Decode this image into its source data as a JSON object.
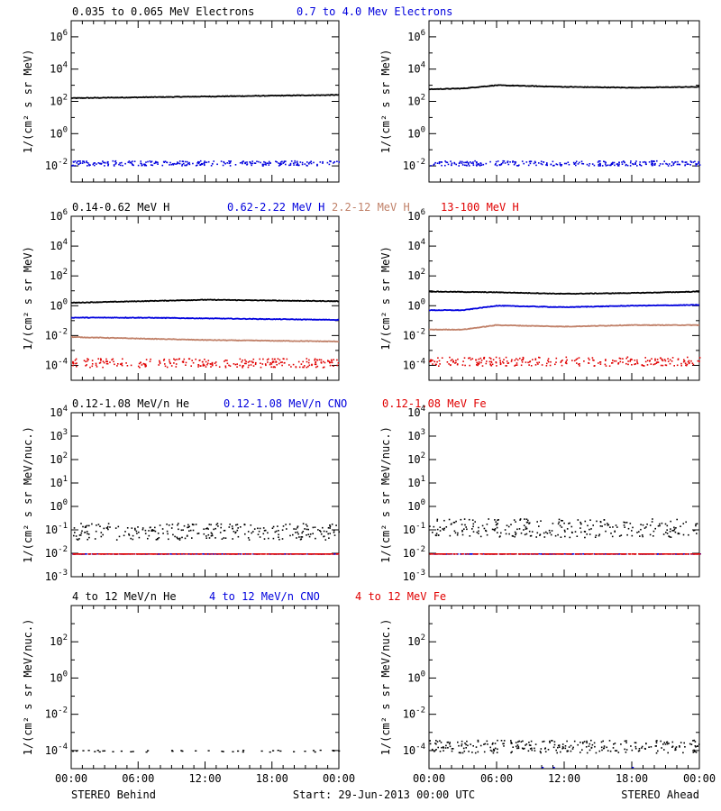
{
  "colors": {
    "black": "#000000",
    "blue": "#0000dd",
    "tan": "#c08068",
    "red": "#e00000"
  },
  "footer": {
    "left": "STEREO Behind",
    "center": "Start: 29-Jun-2013 00:00 UTC",
    "right": "STEREO Ahead"
  },
  "xticks": [
    "00:00",
    "06:00",
    "12:00",
    "18:00",
    "00:00"
  ],
  "chart_data": [
    {
      "type": "scatter",
      "row": "electrons",
      "ylabel": "1/(cm² s sr MeV)",
      "ylog": true,
      "ylim_exp": [
        -3,
        7
      ],
      "ytick_exps": [
        -2,
        0,
        2,
        4,
        6
      ],
      "legend": [
        {
          "name": "0.035 to 0.065 MeV Electrons",
          "color": "black"
        },
        {
          "name": "0.7 to 4.0 Mev Electrons",
          "color": "blue"
        }
      ],
      "behind": [
        {
          "series": "0.035 to 0.065 MeV Electrons",
          "style": "line",
          "color": "black",
          "x_hours": [
            0,
            6,
            12,
            18,
            24
          ],
          "log10_y": [
            2.2,
            2.25,
            2.3,
            2.35,
            2.4
          ]
        },
        {
          "series": "0.7 to 4.0 Mev Electrons",
          "style": "dots",
          "color": "blue",
          "x_hours": [
            0,
            24
          ],
          "log10_y": [
            -1.8,
            -1.8
          ],
          "scatter": 0.15
        }
      ],
      "ahead": [
        {
          "series": "0.035 to 0.065 MeV Electrons",
          "style": "line",
          "color": "black",
          "x_hours": [
            0,
            3,
            6,
            12,
            18,
            24
          ],
          "log10_y": [
            2.75,
            2.8,
            3.0,
            2.9,
            2.85,
            2.9
          ]
        },
        {
          "series": "0.7 to 4.0 Mev Electrons",
          "style": "dots",
          "color": "blue",
          "x_hours": [
            0,
            24
          ],
          "log10_y": [
            -1.8,
            -1.8
          ],
          "scatter": 0.15
        }
      ]
    },
    {
      "type": "scatter",
      "row": "protons",
      "ylabel": "1/(cm² s sr MeV)",
      "ylog": true,
      "ylim_exp": [
        -5,
        6
      ],
      "ytick_exps": [
        -4,
        -2,
        0,
        2,
        4,
        6
      ],
      "legend": [
        {
          "name": "0.14-0.62 MeV H",
          "color": "black"
        },
        {
          "name": "0.62-2.22 MeV H",
          "color": "blue"
        },
        {
          "name": "2.2-12 MeV H",
          "color": "tan"
        },
        {
          "name": "13-100 MeV H",
          "color": "red"
        }
      ],
      "behind": [
        {
          "series": "0.14-0.62 MeV H",
          "style": "line",
          "color": "black",
          "x_hours": [
            0,
            6,
            12,
            18,
            24
          ],
          "log10_y": [
            0.2,
            0.3,
            0.4,
            0.35,
            0.3
          ]
        },
        {
          "series": "0.62-2.22 MeV H",
          "style": "line",
          "color": "blue",
          "x_hours": [
            0,
            6,
            12,
            18,
            24
          ],
          "log10_y": [
            -0.8,
            -0.8,
            -0.85,
            -0.9,
            -0.95
          ]
        },
        {
          "series": "2.2-12 MeV H",
          "style": "line",
          "color": "tan",
          "x_hours": [
            0,
            6,
            12,
            18,
            24
          ],
          "log10_y": [
            -2.1,
            -2.2,
            -2.3,
            -2.35,
            -2.4
          ]
        },
        {
          "series": "13-100 MeV H",
          "style": "dots",
          "color": "red",
          "x_hours": [
            0,
            24
          ],
          "log10_y": [
            -3.8,
            -3.8
          ],
          "scatter": 0.3
        }
      ],
      "ahead": [
        {
          "series": "0.14-0.62 MeV H",
          "style": "line",
          "color": "black",
          "x_hours": [
            0,
            6,
            12,
            18,
            24
          ],
          "log10_y": [
            0.95,
            0.9,
            0.8,
            0.85,
            0.95
          ]
        },
        {
          "series": "0.62-2.22 MeV H",
          "style": "line",
          "color": "blue",
          "x_hours": [
            0,
            3,
            6,
            12,
            18,
            24
          ],
          "log10_y": [
            -0.3,
            -0.3,
            0.0,
            -0.1,
            0.0,
            0.05
          ]
        },
        {
          "series": "2.2-12 MeV H",
          "style": "line",
          "color": "tan",
          "x_hours": [
            0,
            3,
            6,
            12,
            18,
            24
          ],
          "log10_y": [
            -1.6,
            -1.6,
            -1.3,
            -1.4,
            -1.3,
            -1.3
          ]
        },
        {
          "series": "13-100 MeV H",
          "style": "dots",
          "color": "red",
          "x_hours": [
            0,
            24
          ],
          "log10_y": [
            -3.7,
            -3.7
          ],
          "scatter": 0.3
        }
      ]
    },
    {
      "type": "scatter",
      "row": "heavy-low",
      "ylabel": "1/(cm² s sr MeV/nuc.)",
      "ylog": true,
      "ylim_exp": [
        -3,
        4
      ],
      "ytick_exps": [
        -3,
        -2,
        -1,
        0,
        1,
        2,
        3,
        4
      ],
      "legend": [
        {
          "name": "0.12-1.08 MeV/n He",
          "color": "black"
        },
        {
          "name": "0.12-1.08 MeV/n CNO",
          "color": "blue"
        },
        {
          "name": "0.12-1.08 MeV Fe",
          "color": "red"
        }
      ],
      "behind": [
        {
          "series": "0.12-1.08 MeV/n He",
          "style": "dots",
          "color": "black",
          "x_hours": [
            0,
            24
          ],
          "log10_y": [
            -1.05,
            -1.05
          ],
          "scatter": 0.35
        },
        {
          "series": "0.12-1.08 MeV/n CNO",
          "style": "dots",
          "color": "blue",
          "x_hours": [
            0,
            24
          ],
          "log10_y": [
            -2.0,
            -2.0
          ],
          "scatter": 0
        },
        {
          "series": "0.12-1.08 MeV Fe",
          "style": "dots",
          "color": "red",
          "x_hours": [
            0,
            24
          ],
          "log10_y": [
            -2.0,
            -2.0
          ],
          "scatter": 0
        }
      ],
      "ahead": [
        {
          "series": "0.12-1.08 MeV/n He",
          "style": "dots",
          "color": "black",
          "x_hours": [
            0,
            24
          ],
          "log10_y": [
            -0.9,
            -0.9
          ],
          "scatter": 0.4
        },
        {
          "series": "0.12-1.08 MeV/n CNO",
          "style": "dots",
          "color": "blue",
          "x_hours": [
            0,
            24
          ],
          "log10_y": [
            -2.0,
            -2.0
          ],
          "scatter": 0
        },
        {
          "series": "0.12-1.08 MeV Fe",
          "style": "dots",
          "color": "red",
          "x_hours": [
            0,
            24
          ],
          "log10_y": [
            -2.0,
            -2.0
          ],
          "scatter": 0
        }
      ]
    },
    {
      "type": "scatter",
      "row": "heavy-high",
      "ylabel": "1/(cm² s sr MeV/nuc.)",
      "ylog": true,
      "ylim_exp": [
        -5,
        4
      ],
      "ytick_exps": [
        -4,
        -2,
        0,
        2
      ],
      "legend": [
        {
          "name": "4 to 12 MeV/n He",
          "color": "black"
        },
        {
          "name": "4 to 12 MeV/n CNO",
          "color": "blue"
        },
        {
          "name": "4 to 12 MeV Fe",
          "color": "red"
        }
      ],
      "behind": [
        {
          "series": "4 to 12 MeV/n He",
          "style": "dots",
          "color": "black",
          "x_hours": [
            0,
            24
          ],
          "log10_y": [
            -4.0,
            -4.0
          ],
          "scatter": 0.05,
          "sparse": true
        }
      ],
      "ahead": [
        {
          "series": "4 to 12 MeV/n He",
          "style": "dots",
          "color": "black",
          "x_hours": [
            0,
            24
          ],
          "log10_y": [
            -3.75,
            -3.75
          ],
          "scatter": 0.35
        },
        {
          "series": "4 to 12 MeV/n CNO",
          "style": "dots",
          "color": "blue",
          "x_hours": [
            10,
            11,
            18
          ],
          "log10_y": [
            -4.9,
            -4.9,
            -4.9
          ],
          "scatter": 0,
          "sparse": true
        }
      ]
    }
  ]
}
